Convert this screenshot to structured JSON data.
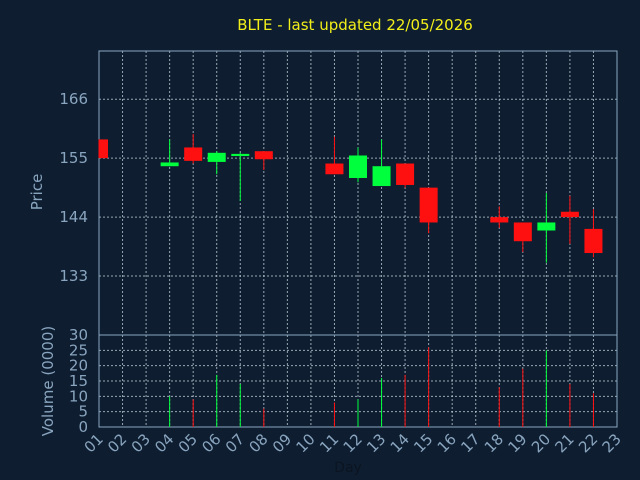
{
  "chart_data": {
    "type": "candlestick",
    "title": "BLTE - last updated 22/05/2026",
    "xlabel": "Day",
    "ylabel_price": "Price",
    "ylabel_volume": "Volume (0000)",
    "x_ticks": [
      "01",
      "02",
      "03",
      "04",
      "05",
      "06",
      "07",
      "08",
      "09",
      "10",
      "11",
      "12",
      "13",
      "14",
      "15",
      "16",
      "17",
      "18",
      "19",
      "20",
      "21",
      "22",
      "23"
    ],
    "price_ticks": [
      133,
      144,
      155,
      166
    ],
    "price_range": [
      122,
      175
    ],
    "volume_ticks": [
      0,
      5,
      10,
      15,
      20,
      25,
      30
    ],
    "volume_range": [
      0,
      30
    ],
    "grid": true,
    "colors": {
      "up": "#00ff3c",
      "down": "#ff1010",
      "title": "#f2ee1a",
      "axis": "#8aa5bf",
      "background": "#0e1e30"
    },
    "candles": [
      {
        "day": "01",
        "open": 158.5,
        "high": 158.5,
        "low": 155.0,
        "close": 155.0,
        "volume": 0
      },
      {
        "day": "04",
        "open": 153.5,
        "high": 158.5,
        "low": 153.5,
        "close": 154.2,
        "volume": 10
      },
      {
        "day": "05",
        "open": 157.0,
        "high": 159.5,
        "low": 154.0,
        "close": 154.5,
        "volume": 9
      },
      {
        "day": "06",
        "open": 154.3,
        "high": 156.3,
        "low": 152.0,
        "close": 156.0,
        "volume": 17
      },
      {
        "day": "07",
        "open": 155.4,
        "high": 156.0,
        "low": 147.0,
        "close": 155.8,
        "volume": 14
      },
      {
        "day": "08",
        "open": 156.3,
        "high": 156.3,
        "low": 152.8,
        "close": 154.8,
        "volume": 6
      },
      {
        "day": "11",
        "open": 154.0,
        "high": 159.0,
        "low": 152.0,
        "close": 152.0,
        "volume": 8
      },
      {
        "day": "12",
        "open": 151.3,
        "high": 157.0,
        "low": 150.5,
        "close": 155.5,
        "volume": 9
      },
      {
        "day": "13",
        "open": 149.8,
        "high": 158.5,
        "low": 149.8,
        "close": 153.5,
        "volume": 16
      },
      {
        "day": "14",
        "open": 154.0,
        "high": 154.0,
        "low": 149.5,
        "close": 150.0,
        "volume": 17
      },
      {
        "day": "15",
        "open": 149.5,
        "high": 149.5,
        "low": 141.0,
        "close": 143.0,
        "volume": 26
      },
      {
        "day": "18",
        "open": 144.0,
        "high": 146.0,
        "low": 142.0,
        "close": 143.0,
        "volume": 13
      },
      {
        "day": "19",
        "open": 143.0,
        "high": 143.0,
        "low": 137.5,
        "close": 139.5,
        "volume": 19
      },
      {
        "day": "20",
        "open": 141.5,
        "high": 148.5,
        "low": 135.5,
        "close": 143.0,
        "volume": 25
      },
      {
        "day": "21",
        "open": 145.0,
        "high": 148.0,
        "low": 139.0,
        "close": 144.0,
        "volume": 14
      },
      {
        "day": "22",
        "open": 141.8,
        "high": 145.5,
        "low": 136.5,
        "close": 137.3,
        "volume": 11
      }
    ]
  }
}
